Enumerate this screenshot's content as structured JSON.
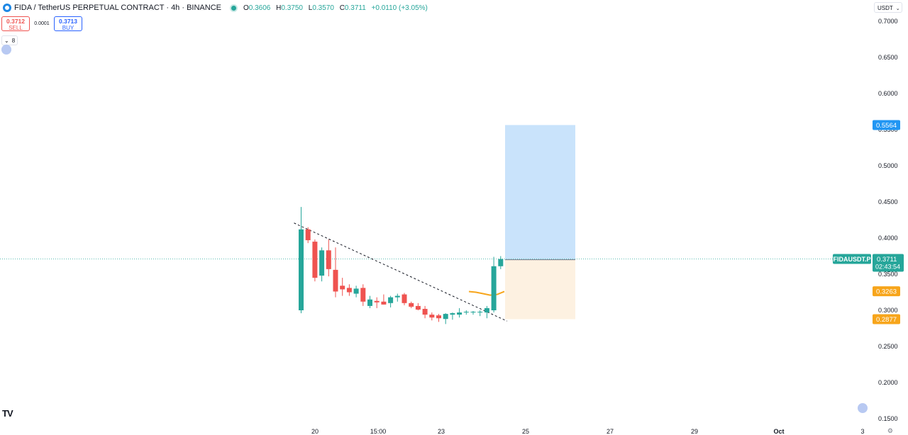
{
  "header": {
    "title": "FIDA / TetherUS PERPETUAL CONTRACT · 4h · BINANCE",
    "ohlc": {
      "o_label": "O",
      "o": "0.3606",
      "h_label": "H",
      "h": "0.3750",
      "l_label": "L",
      "l": "0.3570",
      "c_label": "C",
      "c": "0.3711",
      "change": "+0.0110 (+3.05%)"
    }
  },
  "trade": {
    "sell_price": "0.3712",
    "sell_label": "SELL",
    "spread": "0.0001",
    "buy_price": "0.3713",
    "buy_label": "BUY"
  },
  "indicators_toggle": {
    "count": "8"
  },
  "currency": "USDT",
  "icons": {
    "logo": "tradingview-logo-icon",
    "settings": "gear-icon",
    "collapse": "chevron-down-icon"
  },
  "colors": {
    "up": "#26a69a",
    "down": "#ef5350",
    "target_zone": "#c9e3fb",
    "stop_zone": "#fdf1e1",
    "accent": "#2196f3",
    "ma": "#f7a51b"
  },
  "chart_data": {
    "type": "candlestick",
    "symbol": "FIDAUSDT.P",
    "interval": "4h",
    "ylim": [
      0.14,
      0.71
    ],
    "y_ticks": [
      "0.7000",
      "0.6500",
      "0.6000",
      "0.5500",
      "0.5000",
      "0.4500",
      "0.4000",
      "0.3500",
      "0.3000",
      "0.2500",
      "0.2000",
      "0.1500"
    ],
    "x_ticks": [
      "20",
      "15:00",
      "23",
      "25",
      "27",
      "29",
      "Oct",
      "3"
    ],
    "candles": [
      [
        0.3,
        0.443,
        0.296,
        0.412
      ],
      [
        0.412,
        0.415,
        0.393,
        0.397
      ],
      [
        0.395,
        0.398,
        0.34,
        0.345
      ],
      [
        0.348,
        0.387,
        0.34,
        0.383
      ],
      [
        0.383,
        0.398,
        0.347,
        0.357
      ],
      [
        0.356,
        0.387,
        0.318,
        0.326
      ],
      [
        0.334,
        0.345,
        0.32,
        0.329
      ],
      [
        0.331,
        0.336,
        0.32,
        0.325
      ],
      [
        0.323,
        0.334,
        0.318,
        0.33
      ],
      [
        0.331,
        0.336,
        0.306,
        0.312
      ],
      [
        0.306,
        0.32,
        0.303,
        0.315
      ],
      [
        0.313,
        0.318,
        0.303,
        0.311
      ],
      [
        0.312,
        0.322,
        0.308,
        0.308
      ],
      [
        0.31,
        0.32,
        0.304,
        0.318
      ],
      [
        0.318,
        0.323,
        0.312,
        0.32
      ],
      [
        0.322,
        0.324,
        0.307,
        0.31
      ],
      [
        0.31,
        0.312,
        0.303,
        0.305
      ],
      [
        0.306,
        0.31,
        0.3,
        0.301
      ],
      [
        0.302,
        0.306,
        0.289,
        0.294
      ],
      [
        0.294,
        0.297,
        0.286,
        0.29
      ],
      [
        0.293,
        0.295,
        0.284,
        0.289
      ],
      [
        0.288,
        0.296,
        0.281,
        0.295
      ],
      [
        0.294,
        0.297,
        0.287,
        0.296
      ],
      [
        0.294,
        0.303,
        0.29,
        0.297
      ],
      [
        0.297,
        0.3,
        0.294,
        0.298
      ],
      [
        0.297,
        0.299,
        0.294,
        0.298
      ],
      [
        0.297,
        0.3,
        0.292,
        0.298
      ],
      [
        0.297,
        0.306,
        0.289,
        0.303
      ],
      [
        0.3,
        0.374,
        0.297,
        0.361
      ],
      [
        0.361,
        0.375,
        0.357,
        0.371
      ]
    ],
    "trendline": {
      "from": [
        0.412,
        0
      ],
      "to": [
        0.289,
        29
      ]
    },
    "ma_line": [
      0.326,
      0.325,
      0.323,
      0.321,
      0.322,
      0.326
    ],
    "position": {
      "entry": 0.37,
      "target": 0.5564,
      "stop": 0.2877
    },
    "price_labels": [
      {
        "value": "0.5564",
        "color": "#2196f3"
      },
      {
        "value": "0.3700",
        "color": "#4a4a4a"
      },
      {
        "value": "0.3263",
        "color": "#f7a51b"
      },
      {
        "value": "0.2877",
        "color": "#f7a51b"
      }
    ],
    "last_price": {
      "symbol": "FIDAUSDT.P",
      "value": "0.3711",
      "countdown": "02:43:54"
    }
  }
}
